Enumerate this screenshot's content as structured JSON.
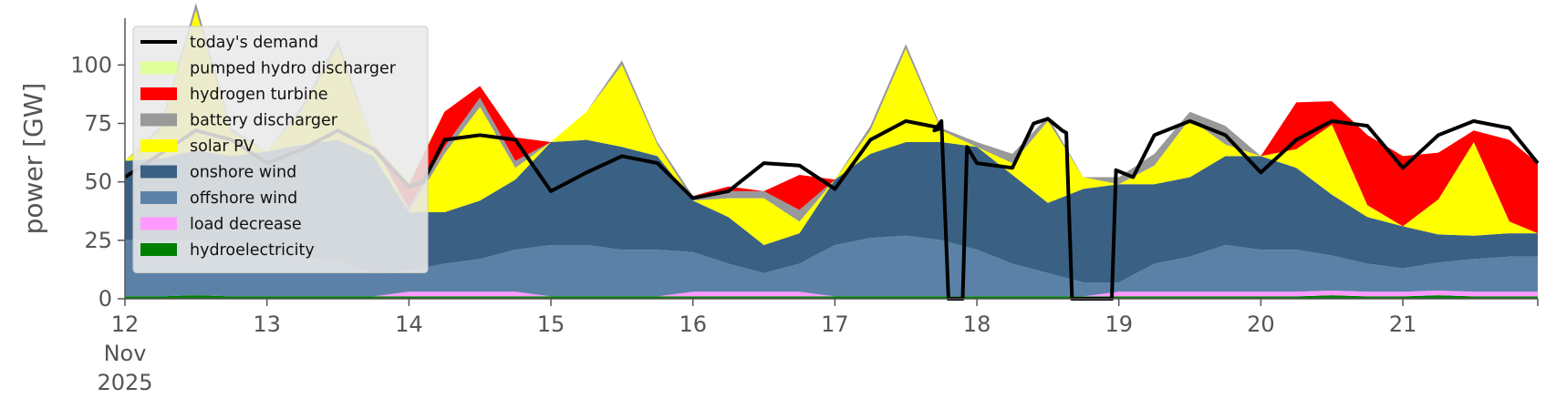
{
  "chart_data": {
    "type": "area",
    "ylabel": "power [GW]",
    "ylim": [
      0,
      120
    ],
    "xlim": [
      0,
      9.95
    ],
    "x_unit": "days since 12 Nov 2025 00:00",
    "x_ticks": [
      {
        "x": 0,
        "lines": [
          "12",
          "Nov",
          "2025"
        ]
      },
      {
        "x": 1,
        "lines": [
          "13"
        ]
      },
      {
        "x": 2,
        "lines": [
          "14"
        ]
      },
      {
        "x": 3,
        "lines": [
          "15"
        ]
      },
      {
        "x": 4,
        "lines": [
          "16"
        ]
      },
      {
        "x": 5,
        "lines": [
          "17"
        ]
      },
      {
        "x": 6,
        "lines": [
          "18"
        ]
      },
      {
        "x": 7,
        "lines": [
          "19"
        ]
      },
      {
        "x": 8,
        "lines": [
          "20"
        ]
      },
      {
        "x": 9,
        "lines": [
          "21"
        ]
      }
    ],
    "y_ticks": [
      0,
      25,
      50,
      75,
      100
    ],
    "grid": false,
    "legend_position": "upper-left",
    "x": [
      0,
      0.25,
      0.5,
      0.75,
      1,
      1.25,
      1.5,
      1.75,
      2,
      2.25,
      2.5,
      2.75,
      3,
      3.25,
      3.5,
      3.75,
      4,
      4.25,
      4.5,
      4.75,
      5,
      5.25,
      5.5,
      5.75,
      6,
      6.25,
      6.5,
      6.75,
      7,
      7.25,
      7.5,
      7.75,
      8,
      8.25,
      8.5,
      8.75,
      9,
      9.25,
      9.5,
      9.75,
      9.95
    ],
    "series": [
      {
        "name": "hydroelectricity",
        "color": "#008000",
        "values": [
          1,
          1,
          1.5,
          1,
          1,
          1,
          1,
          1,
          1,
          1,
          1,
          1,
          1,
          1,
          1,
          1,
          1,
          1,
          1,
          1,
          1,
          1,
          1,
          1,
          1,
          1,
          1,
          1,
          1,
          1,
          1,
          1,
          1,
          1,
          1.5,
          1,
          1,
          1.5,
          1,
          1,
          1
        ]
      },
      {
        "name": "load decrease",
        "color": "#ff99ff",
        "values": [
          0,
          0,
          0,
          0,
          0,
          0,
          0,
          0,
          2,
          2,
          2,
          2,
          0,
          0,
          0,
          0,
          2,
          2,
          2,
          2,
          0,
          0,
          0,
          0,
          0,
          0,
          0,
          0,
          2,
          2,
          2,
          2,
          2,
          2,
          2,
          2,
          2,
          2,
          2,
          2,
          2
        ]
      },
      {
        "name": "offshore wind",
        "color": "#5b82a6",
        "values": [
          24,
          24,
          24,
          20,
          18,
          17,
          15,
          10,
          9,
          12,
          14,
          18,
          22,
          22,
          20,
          20,
          17,
          12,
          8,
          12,
          22,
          25,
          26,
          24,
          20,
          14,
          10,
          6,
          4,
          12,
          15,
          20,
          18,
          18,
          15,
          12,
          10,
          12,
          14,
          15,
          15
        ]
      },
      {
        "name": "onshore wind",
        "color": "#3a6184",
        "values": [
          34,
          35,
          38,
          40,
          44,
          48,
          52,
          50,
          25,
          22,
          25,
          30,
          44,
          45,
          44,
          40,
          22,
          20,
          12,
          13,
          28,
          36,
          40,
          42,
          44,
          38,
          30,
          40,
          42,
          34,
          34,
          38,
          40,
          35,
          26,
          20,
          18,
          12,
          10,
          10,
          10
        ]
      },
      {
        "name": "solar PV",
        "color": "#ffff00",
        "values": [
          0,
          12,
          60,
          10,
          0,
          15,
          40,
          5,
          0,
          25,
          40,
          5,
          0,
          12,
          35,
          5,
          0,
          8,
          20,
          5,
          0,
          10,
          40,
          5,
          0,
          5,
          35,
          5,
          0,
          8,
          25,
          5,
          0,
          8,
          30,
          5,
          0,
          15,
          40,
          5,
          0
        ]
      },
      {
        "name": "battery discharger",
        "color": "#999999",
        "values": [
          0,
          2,
          3,
          2,
          0,
          2,
          3,
          0,
          2,
          3,
          4,
          3,
          0,
          0,
          2,
          1,
          2,
          3,
          3,
          5,
          0,
          2,
          2,
          1,
          2,
          4,
          2,
          0,
          3,
          5,
          3,
          8,
          0,
          0,
          0,
          0,
          0,
          0,
          0,
          0,
          0
        ]
      },
      {
        "name": "hydrogen turbine",
        "color": "#ff0000",
        "values": [
          0,
          0,
          0,
          0,
          0,
          0,
          0,
          0,
          10,
          15,
          5,
          10,
          0,
          0,
          0,
          0,
          0,
          2,
          0,
          15,
          0,
          0,
          0,
          0,
          0,
          0,
          0,
          0,
          0,
          0,
          0,
          0,
          0,
          20,
          10,
          30,
          30,
          20,
          5,
          35,
          30
        ]
      },
      {
        "name": "pumped hydro discharger",
        "color": "#dfff99",
        "values": [
          0,
          0,
          0,
          0,
          0,
          0,
          0,
          0,
          2,
          0,
          0,
          0,
          0,
          0,
          0,
          0,
          0,
          0,
          0,
          0,
          0,
          0,
          0,
          0,
          0,
          0,
          0,
          0,
          0,
          0,
          0,
          0,
          0,
          0,
          0,
          0,
          0,
          0,
          0,
          0,
          0
        ]
      }
    ],
    "demand": {
      "name": "today's demand",
      "color": "#000000",
      "points": [
        [
          0,
          52
        ],
        [
          0.25,
          62
        ],
        [
          0.5,
          72
        ],
        [
          0.75,
          68
        ],
        [
          1,
          58
        ],
        [
          1.25,
          64
        ],
        [
          1.5,
          72
        ],
        [
          1.75,
          64
        ],
        [
          2,
          48
        ],
        [
          2.1,
          50
        ],
        [
          2.25,
          68
        ],
        [
          2.5,
          70
        ],
        [
          2.75,
          68
        ],
        [
          3,
          46
        ],
        [
          3.25,
          54
        ],
        [
          3.5,
          61
        ],
        [
          3.75,
          58
        ],
        [
          4,
          43
        ],
        [
          4.25,
          46
        ],
        [
          4.5,
          58
        ],
        [
          4.75,
          57
        ],
        [
          5,
          47
        ],
        [
          5.25,
          68
        ],
        [
          5.5,
          76
        ],
        [
          5.75,
          73
        ],
        [
          5.7,
          72
        ],
        [
          5.75,
          76
        ],
        [
          5.8,
          0
        ],
        [
          5.9,
          0
        ],
        [
          5.93,
          65
        ],
        [
          6,
          58
        ],
        [
          6.25,
          56
        ],
        [
          6.4,
          75
        ],
        [
          6.5,
          77
        ],
        [
          6.6,
          72
        ],
        [
          6.63,
          71
        ],
        [
          6.67,
          0
        ],
        [
          6.95,
          0
        ],
        [
          6.98,
          55
        ],
        [
          7.1,
          52
        ],
        [
          7.25,
          70
        ],
        [
          7.5,
          76
        ],
        [
          7.75,
          70
        ],
        [
          8,
          54
        ],
        [
          8.25,
          68
        ],
        [
          8.5,
          76
        ],
        [
          8.75,
          74
        ],
        [
          9,
          56
        ],
        [
          9.25,
          70
        ],
        [
          9.5,
          76
        ],
        [
          9.75,
          73
        ],
        [
          9.95,
          58
        ]
      ]
    },
    "legend": [
      {
        "label": "today's demand",
        "kind": "line",
        "color": "#000000"
      },
      {
        "label": "pumped hydro discharger",
        "kind": "patch",
        "color": "#dfff99"
      },
      {
        "label": "hydrogen turbine",
        "kind": "patch",
        "color": "#ff0000"
      },
      {
        "label": "battery discharger",
        "kind": "patch",
        "color": "#999999"
      },
      {
        "label": "solar PV",
        "kind": "patch",
        "color": "#ffff00"
      },
      {
        "label": "onshore wind",
        "kind": "patch",
        "color": "#3a6184"
      },
      {
        "label": "offshore wind",
        "kind": "patch",
        "color": "#5b82a6"
      },
      {
        "label": "load decrease",
        "kind": "patch",
        "color": "#ff99ff"
      },
      {
        "label": "hydroelectricity",
        "kind": "patch",
        "color": "#008000"
      }
    ]
  }
}
